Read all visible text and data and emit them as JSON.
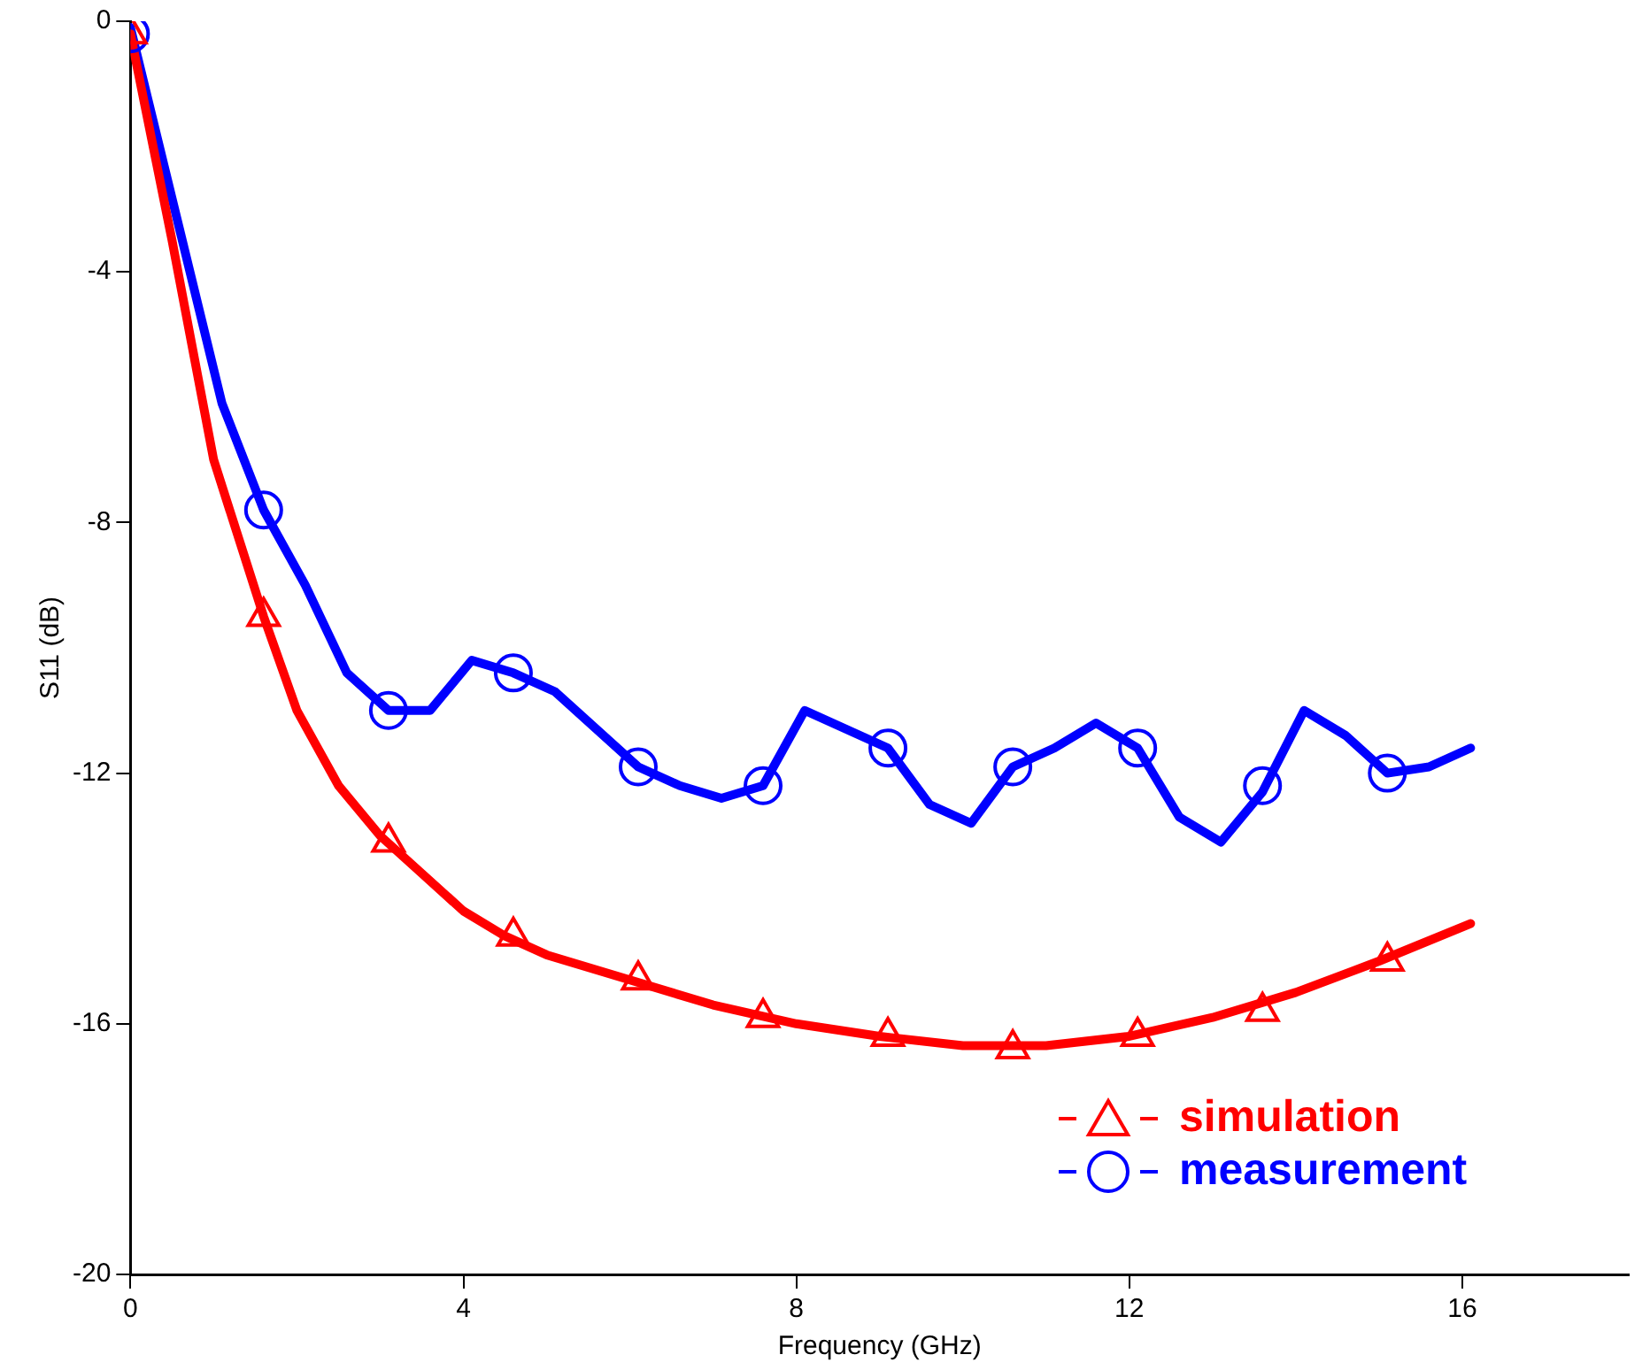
{
  "chart_data": {
    "type": "line",
    "xlabel": "Frequency (GHz)",
    "ylabel": "S11 (dB)",
    "xlim": [
      0,
      18
    ],
    "xticks": [
      0,
      4,
      8,
      12,
      16
    ],
    "ylim": [
      -20,
      0
    ],
    "yticks": [
      -20,
      -16,
      -12,
      -8,
      -4,
      0
    ],
    "grid": false,
    "legend": "bottom right",
    "line_style": "solid",
    "series": [
      {
        "name": "simulation",
        "color": "#ff0000",
        "x": [
          0,
          0.5,
          1,
          1.6,
          2,
          2.5,
          3,
          3.5,
          4,
          4.5,
          5,
          6,
          7,
          8,
          9,
          10,
          11,
          12,
          13,
          14,
          15,
          16.1
        ],
        "values": [
          -0.2,
          -3.5,
          -7.0,
          -9.5,
          -11.0,
          -12.2,
          -13.0,
          -13.6,
          -14.2,
          -14.6,
          -14.9,
          -15.3,
          -15.7,
          -16.0,
          -16.2,
          -16.35,
          -16.35,
          -16.2,
          -15.9,
          -15.5,
          -15.0,
          -14.4
        ]
      },
      {
        "name": "measurement",
        "color": "#0000ff",
        "x": [
          0,
          1.1,
          1.6,
          2.1,
          2.6,
          3.1,
          3.6,
          4.1,
          4.6,
          5.1,
          5.6,
          6.1,
          6.6,
          7.1,
          7.6,
          8.1,
          8.6,
          9.1,
          9.6,
          10.1,
          10.6,
          11.1,
          11.6,
          12.1,
          12.6,
          13.1,
          13.6,
          14.1,
          14.6,
          15.1,
          15.6,
          16.1
        ],
        "values": [
          -0.1,
          -6.1,
          -7.8,
          -9.0,
          -10.4,
          -11.0,
          -11.0,
          -10.2,
          -10.4,
          -10.7,
          -11.3,
          -11.9,
          -12.2,
          -12.4,
          -12.2,
          -11.0,
          -11.3,
          -11.6,
          -12.5,
          -12.8,
          -11.9,
          -11.6,
          -11.2,
          -11.6,
          -12.7,
          -13.1,
          -12.3,
          -11.0,
          -11.4,
          -12.0,
          -11.9,
          -11.6
        ]
      },
      {
        "color": "#ff0000",
        "type": "scatter",
        "marker": "triangle",
        "x": [
          0,
          1.6,
          3.1,
          4.6,
          6.1,
          7.6,
          9.1,
          10.6,
          12.1,
          13.6,
          15.1
        ],
        "values": [
          -0.2,
          -9.5,
          -13.1,
          -14.6,
          -15.3,
          -15.9,
          -16.2,
          -16.4,
          -16.2,
          -15.8,
          -15.0
        ]
      },
      {
        "color": "#0000ff",
        "type": "scatter",
        "marker": "circle",
        "x": [
          0,
          1.6,
          3.1,
          4.6,
          6.1,
          7.6,
          9.1,
          10.6,
          12.1,
          13.6,
          15.1
        ],
        "values": [
          -0.2,
          -7.8,
          -11.0,
          -10.4,
          -11.9,
          -12.2,
          -11.6,
          -11.9,
          -11.6,
          -12.2,
          -12.0
        ]
      }
    ]
  }
}
